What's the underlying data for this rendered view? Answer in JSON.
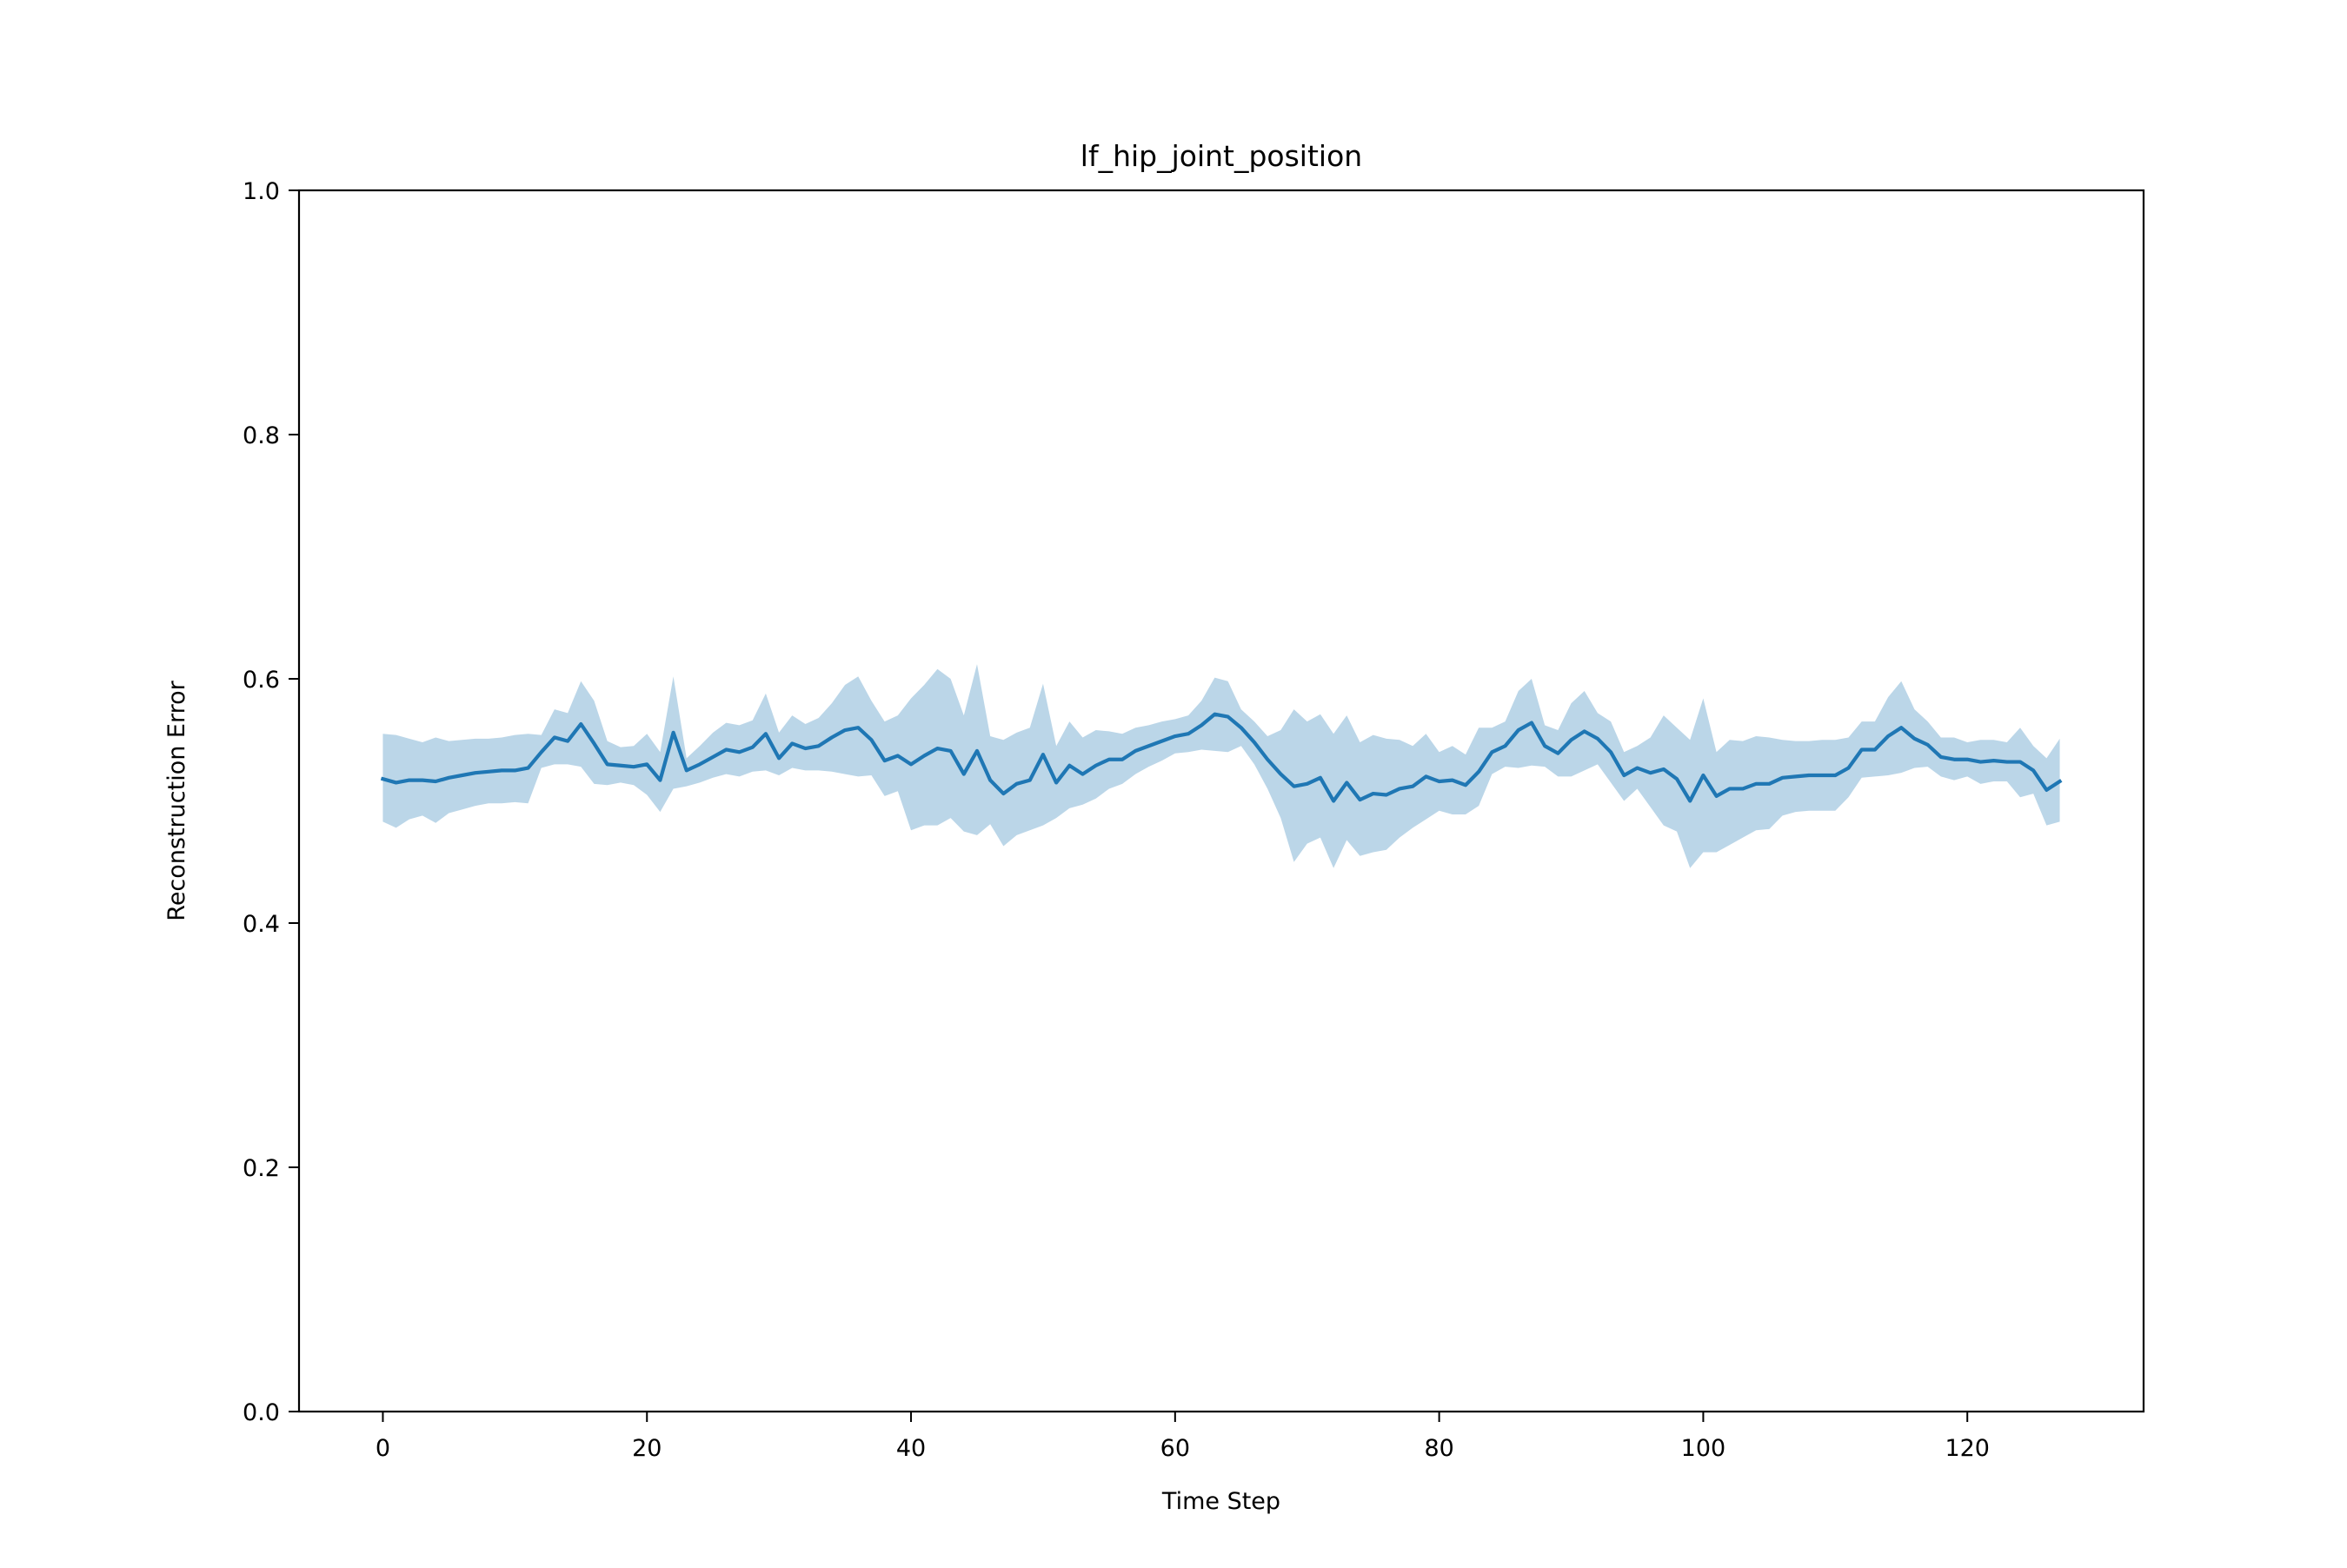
{
  "chart_data": {
    "type": "line",
    "title": "lf_hip_joint_position",
    "xlabel": "Time Step",
    "ylabel": "Reconstruction Error",
    "xlim": [
      -6.35,
      133.35
    ],
    "ylim": [
      0.0,
      1.0
    ],
    "xticks": [
      0,
      20,
      40,
      60,
      80,
      100,
      120
    ],
    "yticks": [
      0.0,
      0.2,
      0.4,
      0.6,
      0.8,
      1.0
    ],
    "xtick_labels": [
      "0",
      "20",
      "40",
      "60",
      "80",
      "100",
      "120"
    ],
    "ytick_labels": [
      "0.0",
      "0.2",
      "0.4",
      "0.6",
      "0.8",
      "1.0"
    ],
    "grid": false,
    "legend": false,
    "line_color": "#1f77b4",
    "band_color": "#1f77b4",
    "band_opacity": 0.3,
    "x": [
      0,
      1,
      2,
      3,
      4,
      5,
      6,
      7,
      8,
      9,
      10,
      11,
      12,
      13,
      14,
      15,
      16,
      17,
      18,
      19,
      20,
      21,
      22,
      23,
      24,
      25,
      26,
      27,
      28,
      29,
      30,
      31,
      32,
      33,
      34,
      35,
      36,
      37,
      38,
      39,
      40,
      41,
      42,
      43,
      44,
      45,
      46,
      47,
      48,
      49,
      50,
      51,
      52,
      53,
      54,
      55,
      56,
      57,
      58,
      59,
      60,
      61,
      62,
      63,
      64,
      65,
      66,
      67,
      68,
      69,
      70,
      71,
      72,
      73,
      74,
      75,
      76,
      77,
      78,
      79,
      80,
      81,
      82,
      83,
      84,
      85,
      86,
      87,
      88,
      89,
      90,
      91,
      92,
      93,
      94,
      95,
      96,
      97,
      98,
      99,
      100,
      101,
      102,
      103,
      104,
      105,
      106,
      107,
      108,
      109,
      110,
      111,
      112,
      113,
      114,
      115,
      116,
      117,
      118,
      119,
      120,
      121,
      122,
      123,
      124,
      125,
      126,
      127
    ],
    "mean": [
      0.518,
      0.515,
      0.517,
      0.517,
      0.516,
      0.519,
      0.521,
      0.523,
      0.524,
      0.525,
      0.525,
      0.527,
      0.54,
      0.552,
      0.549,
      0.563,
      0.547,
      0.53,
      0.529,
      0.528,
      0.53,
      0.517,
      0.556,
      0.525,
      0.53,
      0.536,
      0.542,
      0.54,
      0.544,
      0.555,
      0.535,
      0.547,
      0.543,
      0.545,
      0.552,
      0.558,
      0.56,
      0.55,
      0.533,
      0.537,
      0.53,
      0.537,
      0.543,
      0.541,
      0.522,
      0.541,
      0.517,
      0.506,
      0.514,
      0.517,
      0.538,
      0.515,
      0.529,
      0.522,
      0.529,
      0.534,
      0.534,
      0.541,
      0.545,
      0.549,
      0.553,
      0.555,
      0.562,
      0.571,
      0.569,
      0.56,
      0.548,
      0.534,
      0.522,
      0.512,
      0.514,
      0.519,
      0.5,
      0.515,
      0.501,
      0.506,
      0.505,
      0.51,
      0.512,
      0.52,
      0.516,
      0.517,
      0.513,
      0.524,
      0.54,
      0.545,
      0.558,
      0.564,
      0.545,
      0.539,
      0.55,
      0.557,
      0.551,
      0.54,
      0.521,
      0.527,
      0.523,
      0.526,
      0.518,
      0.5,
      0.521,
      0.504,
      0.51,
      0.51,
      0.514,
      0.514,
      0.519,
      0.52,
      0.521,
      0.521,
      0.521,
      0.527,
      0.542,
      0.542,
      0.553,
      0.56,
      0.551,
      0.546,
      0.536,
      0.534,
      0.534,
      0.532,
      0.533,
      0.532,
      0.532,
      0.525,
      0.509,
      0.516
    ],
    "upper": [
      0.555,
      0.554,
      0.551,
      0.548,
      0.552,
      0.549,
      0.55,
      0.551,
      0.551,
      0.552,
      0.554,
      0.555,
      0.554,
      0.575,
      0.572,
      0.598,
      0.582,
      0.549,
      0.544,
      0.545,
      0.555,
      0.54,
      0.602,
      0.535,
      0.545,
      0.556,
      0.564,
      0.562,
      0.566,
      0.588,
      0.556,
      0.57,
      0.563,
      0.568,
      0.58,
      0.595,
      0.602,
      0.582,
      0.565,
      0.57,
      0.584,
      0.595,
      0.608,
      0.6,
      0.57,
      0.612,
      0.553,
      0.55,
      0.556,
      0.56,
      0.596,
      0.545,
      0.565,
      0.552,
      0.558,
      0.557,
      0.555,
      0.56,
      0.562,
      0.565,
      0.567,
      0.57,
      0.582,
      0.601,
      0.598,
      0.575,
      0.565,
      0.553,
      0.558,
      0.575,
      0.565,
      0.571,
      0.555,
      0.57,
      0.548,
      0.554,
      0.551,
      0.55,
      0.545,
      0.555,
      0.54,
      0.545,
      0.538,
      0.56,
      0.56,
      0.565,
      0.59,
      0.6,
      0.562,
      0.558,
      0.58,
      0.59,
      0.572,
      0.565,
      0.54,
      0.545,
      0.552,
      0.57,
      0.56,
      0.55,
      0.584,
      0.54,
      0.55,
      0.549,
      0.553,
      0.552,
      0.55,
      0.549,
      0.549,
      0.55,
      0.55,
      0.552,
      0.565,
      0.565,
      0.585,
      0.598,
      0.575,
      0.565,
      0.552,
      0.552,
      0.548,
      0.55,
      0.55,
      0.548,
      0.56,
      0.545,
      0.535,
      0.551
    ],
    "lower": [
      0.483,
      0.478,
      0.485,
      0.488,
      0.482,
      0.49,
      0.493,
      0.496,
      0.498,
      0.498,
      0.499,
      0.498,
      0.527,
      0.53,
      0.53,
      0.528,
      0.514,
      0.513,
      0.515,
      0.513,
      0.505,
      0.491,
      0.51,
      0.512,
      0.515,
      0.519,
      0.522,
      0.52,
      0.524,
      0.525,
      0.521,
      0.527,
      0.525,
      0.525,
      0.524,
      0.522,
      0.52,
      0.521,
      0.504,
      0.508,
      0.476,
      0.48,
      0.48,
      0.486,
      0.475,
      0.472,
      0.481,
      0.463,
      0.472,
      0.476,
      0.48,
      0.486,
      0.494,
      0.497,
      0.502,
      0.51,
      0.514,
      0.522,
      0.528,
      0.533,
      0.539,
      0.54,
      0.542,
      0.541,
      0.54,
      0.545,
      0.53,
      0.51,
      0.486,
      0.45,
      0.465,
      0.47,
      0.445,
      0.468,
      0.455,
      0.458,
      0.46,
      0.47,
      0.478,
      0.485,
      0.492,
      0.489,
      0.489,
      0.496,
      0.522,
      0.528,
      0.527,
      0.529,
      0.528,
      0.52,
      0.52,
      0.525,
      0.53,
      0.515,
      0.5,
      0.51,
      0.495,
      0.48,
      0.475,
      0.445,
      0.458,
      0.458,
      0.464,
      0.47,
      0.476,
      0.477,
      0.488,
      0.491,
      0.492,
      0.492,
      0.492,
      0.503,
      0.519,
      0.52,
      0.521,
      0.523,
      0.527,
      0.528,
      0.52,
      0.517,
      0.52,
      0.514,
      0.516,
      0.516,
      0.503,
      0.506,
      0.48,
      0.483
    ]
  }
}
